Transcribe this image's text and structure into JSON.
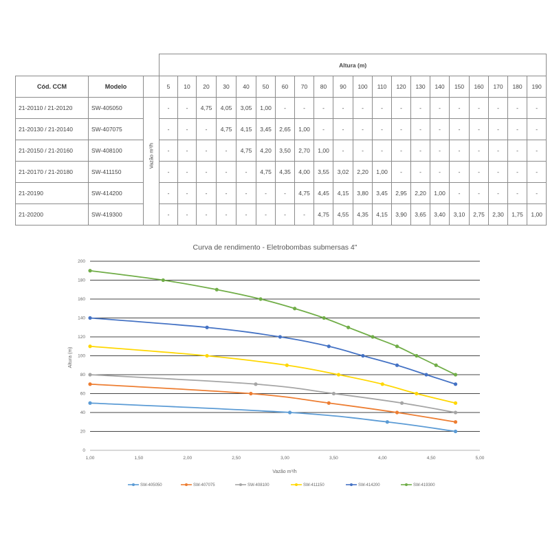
{
  "table": {
    "col_cod_header": "Cód. CCM",
    "col_modelo_header": "Modelo",
    "altura_header": "Altura (m)",
    "vazao_label": "Vazão m³/h",
    "heights": [
      "5",
      "10",
      "20",
      "30",
      "40",
      "50",
      "60",
      "70",
      "80",
      "90",
      "100",
      "110",
      "120",
      "130",
      "140",
      "150",
      "160",
      "170",
      "180",
      "190"
    ],
    "rows": [
      {
        "cod": "21-20110 / 21-20120",
        "modelo": "SW-405050",
        "values": [
          "-",
          "-",
          "4,75",
          "4,05",
          "3,05",
          "1,00",
          "-",
          "-",
          "-",
          "-",
          "-",
          "-",
          "-",
          "-",
          "-",
          "-",
          "-",
          "-",
          "-",
          "-"
        ]
      },
      {
        "cod": "21-20130 / 21-20140",
        "modelo": "SW-407075",
        "values": [
          "-",
          "-",
          "-",
          "4,75",
          "4,15",
          "3,45",
          "2,65",
          "1,00",
          "-",
          "-",
          "-",
          "-",
          "-",
          "-",
          "-",
          "-",
          "-",
          "-",
          "-",
          "-"
        ]
      },
      {
        "cod": "21-20150 / 21-20160",
        "modelo": "SW-408100",
        "values": [
          "-",
          "-",
          "-",
          "-",
          "4,75",
          "4,20",
          "3,50",
          "2,70",
          "1,00",
          "-",
          "-",
          "-",
          "-",
          "-",
          "-",
          "-",
          "-",
          "-",
          "-",
          "-"
        ]
      },
      {
        "cod": "21-20170 / 21-20180",
        "modelo": "SW-411150",
        "values": [
          "-",
          "-",
          "-",
          "-",
          "-",
          "4,75",
          "4,35",
          "4,00",
          "3,55",
          "3,02",
          "2,20",
          "1,00",
          "-",
          "-",
          "-",
          "-",
          "-",
          "-",
          "-",
          "-"
        ]
      },
      {
        "cod": "21-20190",
        "modelo": "SW-414200",
        "values": [
          "-",
          "-",
          "-",
          "-",
          "-",
          "-",
          "-",
          "4,75",
          "4,45",
          "4,15",
          "3,80",
          "3,45",
          "2,95",
          "2,20",
          "1,00",
          "-",
          "-",
          "-",
          "-",
          "-"
        ]
      },
      {
        "cod": "21-20200",
        "modelo": "SW-419300",
        "values": [
          "-",
          "-",
          "-",
          "-",
          "-",
          "-",
          "-",
          "-",
          "4,75",
          "4,55",
          "4,35",
          "4,15",
          "3,90",
          "3,65",
          "3,40",
          "3,10",
          "2,75",
          "2,30",
          "1,75",
          "1,00"
        ]
      }
    ]
  },
  "chart_data": {
    "type": "line",
    "title": "Curva de rendimento - Eletrobombas submersas 4\"",
    "xlabel": "Vazão m³/h",
    "ylabel": "Altura (m)",
    "xlim": [
      1.0,
      5.0
    ],
    "ylim": [
      0,
      200
    ],
    "x_ticks": [
      "1,00",
      "1,50",
      "2,00",
      "2,50",
      "3,00",
      "3,50",
      "4,00",
      "4,50",
      "5,00"
    ],
    "y_ticks": [
      "0",
      "20",
      "40",
      "60",
      "80",
      "100",
      "120",
      "140",
      "160",
      "180",
      "200"
    ],
    "grid": "horizontal",
    "legend_position": "bottom",
    "series": [
      {
        "name": "SW-405050",
        "color": "#5b9bd5",
        "points": [
          [
            1.0,
            50
          ],
          [
            3.05,
            40
          ],
          [
            4.05,
            30
          ],
          [
            4.75,
            20
          ]
        ]
      },
      {
        "name": "SW-407075",
        "color": "#ed7d31",
        "points": [
          [
            1.0,
            70
          ],
          [
            2.65,
            60
          ],
          [
            3.45,
            50
          ],
          [
            4.15,
            40
          ],
          [
            4.75,
            30
          ]
        ]
      },
      {
        "name": "SW-408100",
        "color": "#a5a5a5",
        "points": [
          [
            1.0,
            80
          ],
          [
            2.7,
            70
          ],
          [
            3.5,
            60
          ],
          [
            4.2,
            50
          ],
          [
            4.75,
            40
          ]
        ]
      },
      {
        "name": "SW-411150",
        "color": "#ffd700",
        "points": [
          [
            1.0,
            110
          ],
          [
            2.2,
            100
          ],
          [
            3.02,
            90
          ],
          [
            3.55,
            80
          ],
          [
            4.0,
            70
          ],
          [
            4.35,
            60
          ],
          [
            4.75,
            50
          ]
        ]
      },
      {
        "name": "SW-414200",
        "color": "#4472c4",
        "points": [
          [
            1.0,
            140
          ],
          [
            2.2,
            130
          ],
          [
            2.95,
            120
          ],
          [
            3.45,
            110
          ],
          [
            3.8,
            100
          ],
          [
            4.15,
            90
          ],
          [
            4.45,
            80
          ],
          [
            4.75,
            70
          ]
        ]
      },
      {
        "name": "SW-419300",
        "color": "#70ad47",
        "points": [
          [
            1.0,
            190
          ],
          [
            1.75,
            180
          ],
          [
            2.3,
            170
          ],
          [
            2.75,
            160
          ],
          [
            3.1,
            150
          ],
          [
            3.4,
            140
          ],
          [
            3.65,
            130
          ],
          [
            3.9,
            120
          ],
          [
            4.15,
            110
          ],
          [
            4.35,
            100
          ],
          [
            4.55,
            90
          ],
          [
            4.75,
            80
          ]
        ]
      }
    ]
  }
}
